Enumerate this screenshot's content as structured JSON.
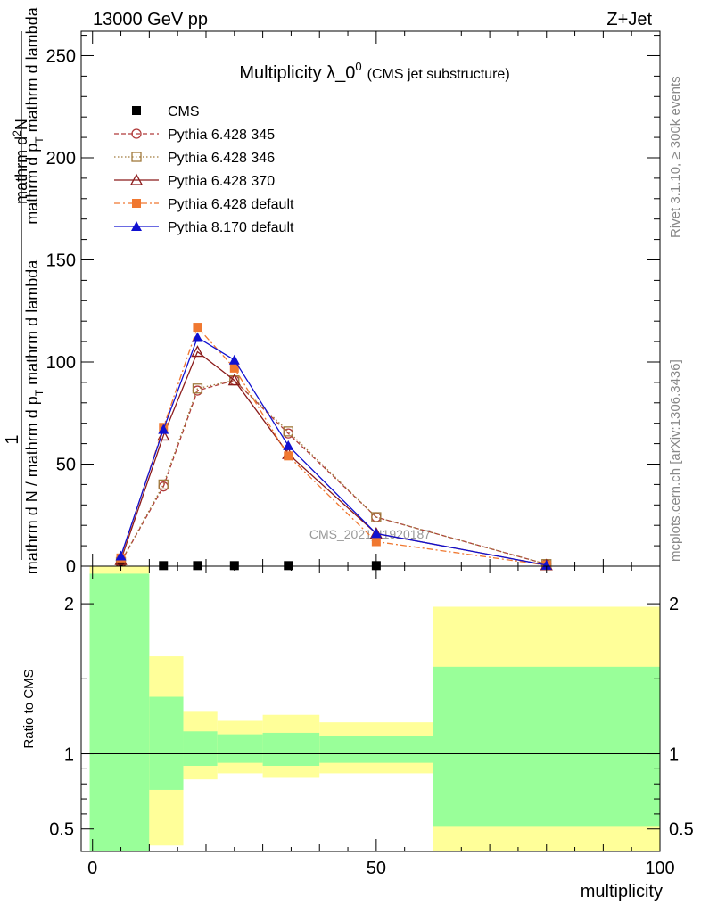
{
  "header": {
    "left": "13000 GeV pp",
    "right": "Z+Jet"
  },
  "side_labels": {
    "rivet": "Rivet 3.1.10, ≥ 300k events",
    "mcplots": "mcplots.cern.ch [arXiv:1306.3436]"
  },
  "chart_data": [
    {
      "type": "line",
      "title_main": "Multiplicity λ_0",
      "title_sup": "0",
      "title_sub": "(CMS jet substructure)",
      "ylabel_top": "1",
      "ylabel_main": "mathrm d N / mathrm d p",
      "ylabel_main_sub": "T",
      "ylabel_main_tail": " mathrm d lambda",
      "ylabel_num": "mathrm d",
      "ylabel_num_sup": "2",
      "ylabel_num_tail": "N",
      "ylabel_den": "mathrm d p",
      "ylabel_den_sub": "T",
      "ylabel_den_tail": " mathrm d lambda",
      "watermark": "CMS_2021_I1920187",
      "xlim": [
        -2,
        100
      ],
      "ylim": [
        0,
        262
      ],
      "yticks": [
        0,
        50,
        100,
        150,
        200,
        250
      ],
      "legend_position": "top-left",
      "x": [
        5,
        12.5,
        18.5,
        25,
        34.5,
        50,
        80
      ],
      "series": [
        {
          "name": "CMS",
          "color": "#000000",
          "marker": "square-filled",
          "dash": "none",
          "values": [
            0.3,
            0.3,
            0.3,
            0.3,
            0.3,
            0.3,
            0.3
          ]
        },
        {
          "name": "Pythia 6.428 345",
          "color": "#b03a3a",
          "marker": "circle-open",
          "dash": "5,3",
          "values": [
            2,
            39,
            86,
            91,
            65,
            24,
            1
          ]
        },
        {
          "name": "Pythia 6.428 346",
          "color": "#a07a3c",
          "marker": "square-open",
          "dash": "1.5,2.5",
          "values": [
            2,
            40,
            87,
            91,
            66,
            24,
            1
          ]
        },
        {
          "name": "Pythia 6.428 370",
          "color": "#8b1a1a",
          "marker": "triangle-open",
          "dash": "none",
          "values": [
            3,
            64,
            105,
            91,
            55,
            16,
            0.5
          ]
        },
        {
          "name": "Pythia 6.428 default",
          "color": "#f07830",
          "marker": "square-filled",
          "dash": "7,3,2,3",
          "values": [
            4,
            68,
            117,
            97,
            54,
            12,
            0.5
          ]
        },
        {
          "name": "Pythia 8.170 default",
          "color": "#1010d0",
          "marker": "triangle-filled",
          "dash": "none",
          "values": [
            5,
            67,
            112,
            101,
            59,
            16,
            0.5
          ]
        }
      ]
    },
    {
      "type": "area",
      "ylabel": "Ratio to CMS",
      "xlabel": "multiplicity",
      "xlim": [
        -2,
        100
      ],
      "ylim": [
        0.35,
        2.25
      ],
      "yticks": [
        0.5,
        1,
        2
      ],
      "ytick_labels": [
        "0.5",
        "1",
        "2"
      ],
      "xticks": [
        0,
        50,
        100
      ],
      "xtick_labels": [
        "0",
        "50",
        "100"
      ],
      "reference_line": 1,
      "bands": [
        {
          "x0": -0.5,
          "x1": 10,
          "yellow": [
            0.35,
            2.25
          ],
          "green": [
            0.35,
            2.2
          ]
        },
        {
          "x0": 10,
          "x1": 16,
          "yellow": [
            0.39,
            1.65
          ],
          "green": [
            0.76,
            1.38
          ]
        },
        {
          "x0": 16,
          "x1": 22,
          "yellow": [
            0.83,
            1.28
          ],
          "green": [
            0.92,
            1.15
          ]
        },
        {
          "x0": 22,
          "x1": 30,
          "yellow": [
            0.87,
            1.22
          ],
          "green": [
            0.94,
            1.13
          ]
        },
        {
          "x0": 30,
          "x1": 40,
          "yellow": [
            0.84,
            1.26
          ],
          "green": [
            0.92,
            1.14
          ]
        },
        {
          "x0": 40,
          "x1": 60,
          "yellow": [
            0.87,
            1.21
          ],
          "green": [
            0.94,
            1.12
          ]
        },
        {
          "x0": 60,
          "x1": 100,
          "yellow": [
            0.35,
            1.98
          ],
          "green": [
            0.52,
            1.58
          ]
        }
      ]
    }
  ]
}
